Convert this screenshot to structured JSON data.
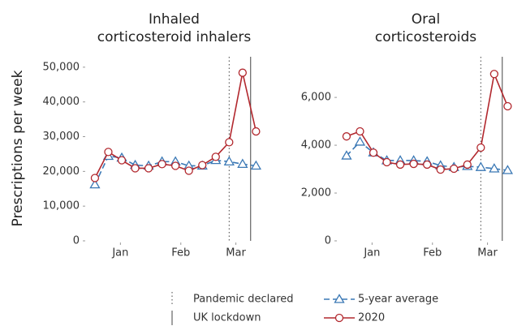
{
  "chart_data": [
    {
      "type": "line",
      "title": [
        "Inhaled",
        "corticosteroid inhalers"
      ],
      "ylabel": "Prescriptions per week",
      "x": [
        0,
        1,
        2,
        3,
        4,
        5,
        6,
        7,
        8,
        9,
        10,
        11,
        12
      ],
      "xlim": [
        -0.6,
        12.4
      ],
      "xticks": [
        {
          "value": 1.9,
          "label": "Jan"
        },
        {
          "value": 6.4,
          "label": "Feb"
        },
        {
          "value": 10.5,
          "label": "Mar"
        }
      ],
      "ylim": [
        0,
        53000
      ],
      "yticks": [
        0,
        {
          "value": 10000,
          "label": "10,000"
        },
        {
          "value": 20000,
          "label": "20,000"
        },
        {
          "value": 30000,
          "label": "30,000"
        },
        {
          "value": 40000,
          "label": "40,000"
        },
        {
          "value": 50000,
          "label": "50,000"
        }
      ],
      "vlines": [
        {
          "name": "Pandemic declared",
          "x": 10,
          "style": "dotted"
        },
        {
          "name": "UK lockdown",
          "x": 11.6,
          "style": "solid"
        }
      ],
      "series": [
        {
          "name": "5-year average",
          "color": "#3a78b5",
          "style": "dashed",
          "marker": "triangle",
          "values": [
            16200,
            24400,
            23900,
            21800,
            21600,
            22800,
            22800,
            21600,
            21600,
            23200,
            22800,
            22100,
            21600
          ]
        },
        {
          "name": "2020",
          "color": "#b2282e",
          "style": "solid",
          "marker": "circle",
          "values": [
            18100,
            25600,
            23200,
            20900,
            20900,
            22100,
            21600,
            20200,
            21800,
            24200,
            28400,
            48400,
            31500
          ]
        }
      ]
    },
    {
      "type": "line",
      "title": [
        "Oral",
        "corticosteroids"
      ],
      "x": [
        0,
        1,
        2,
        3,
        4,
        5,
        6,
        7,
        8,
        9,
        10,
        11,
        12
      ],
      "xlim": [
        -0.6,
        12.4
      ],
      "xticks": [
        {
          "value": 1.9,
          "label": "Jan"
        },
        {
          "value": 6.4,
          "label": "Feb"
        },
        {
          "value": 10.5,
          "label": "Mar"
        }
      ],
      "ylim": [
        0,
        7700
      ],
      "yticks": [
        0,
        {
          "value": 2000,
          "label": "2,000"
        },
        {
          "value": 4000,
          "label": "4,000"
        },
        {
          "value": 6000,
          "label": "6,000"
        }
      ],
      "vlines": [
        {
          "name": "Pandemic declared",
          "x": 10,
          "style": "dotted"
        },
        {
          "name": "UK lockdown",
          "x": 11.6,
          "style": "solid"
        }
      ],
      "series": [
        {
          "name": "5-year average",
          "color": "#3a78b5",
          "style": "dashed",
          "marker": "triangle",
          "values": [
            3560,
            4140,
            3690,
            3360,
            3360,
            3360,
            3320,
            3150,
            3080,
            3120,
            3080,
            3020,
            2950
          ]
        },
        {
          "name": "2020",
          "color": "#b2282e",
          "style": "solid",
          "marker": "circle",
          "values": [
            4370,
            4580,
            3690,
            3290,
            3190,
            3220,
            3190,
            2980,
            3020,
            3190,
            3900,
            6980,
            5630
          ]
        }
      ]
    }
  ]
}
